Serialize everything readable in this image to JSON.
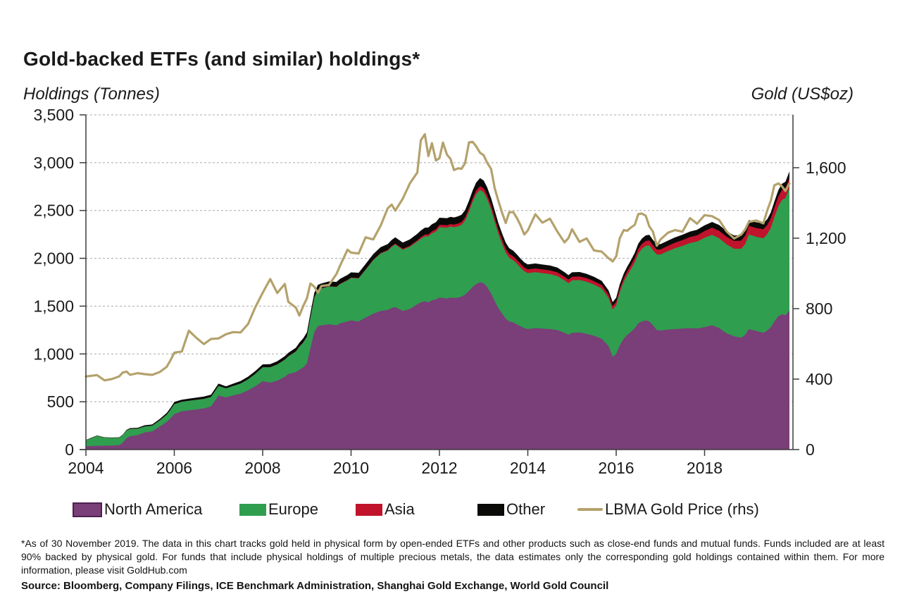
{
  "header": {
    "title": "Gold-backed ETFs (and similar) holdings*"
  },
  "axes": {
    "left_label": "Holdings (Tonnes)",
    "right_label": "Gold (US$oz)",
    "left_ticks": [
      {
        "value": 3500,
        "label": "3,500"
      },
      {
        "value": 3000,
        "label": "3,000"
      },
      {
        "value": 2500,
        "label": "2,500"
      },
      {
        "value": 2000,
        "label": "2,000"
      },
      {
        "value": 1500,
        "label": "1,500"
      },
      {
        "value": 1000,
        "label": "1,000"
      },
      {
        "value": 500,
        "label": "500"
      },
      {
        "value": 0,
        "label": "0"
      }
    ],
    "right_ticks": [
      {
        "value": 1600,
        "label": "1,600"
      },
      {
        "value": 1200,
        "label": "1,200"
      },
      {
        "value": 800,
        "label": "800"
      },
      {
        "value": 400,
        "label": "400"
      },
      {
        "value": 0,
        "label": "0"
      }
    ],
    "x_ticks": [
      {
        "value": 2004,
        "label": "2004"
      },
      {
        "value": 2006,
        "label": "2006"
      },
      {
        "value": 2008,
        "label": "2008"
      },
      {
        "value": 2010,
        "label": "2010"
      },
      {
        "value": 2012,
        "label": "2012"
      },
      {
        "value": 2014,
        "label": "2014"
      },
      {
        "value": 2016,
        "label": "2016"
      },
      {
        "value": 2018,
        "label": "2018"
      }
    ]
  },
  "legend": {
    "items": [
      {
        "label": "North America",
        "color": "#7a3e78",
        "border": "#4e2050",
        "type": "area"
      },
      {
        "label": "Europe",
        "color": "#2f9e4f",
        "type": "area"
      },
      {
        "label": "Asia",
        "color": "#c1132c",
        "type": "area"
      },
      {
        "label": "Other",
        "color": "#0a0a08",
        "type": "area"
      },
      {
        "label": "LBMA Gold Price (rhs)",
        "color": "#b4a26c",
        "type": "line"
      }
    ]
  },
  "footnote": "*As of 30 November 2019. The data in this chart tracks gold held in physical form by open-ended ETFs and other products such as close-end funds and mutual funds. Funds included are at least 90% backed by physical gold. For funds that include physical holdings of multiple precious metals, the data estimates only the corresponding gold holdings contained within them. For more information, please visit GoldHub.com",
  "source": "Source: Bloomberg, Company Filings, ICE Benchmark Administration,  Shanghai Gold Exchange, World Gold Council",
  "chart_data": {
    "type": "area",
    "stacked": true,
    "title": "Gold-backed ETFs (and similar) holdings*",
    "xlabel": "",
    "ylabel_left": "Holdings (Tonnes)",
    "ylabel_right": "Gold (US$oz)",
    "x_range": [
      2004,
      2019.97
    ],
    "left_ylim": [
      0,
      3500
    ],
    "right_ylim": [
      0,
      1900
    ],
    "grid": "dashed-horizontal",
    "legend_position": "bottom",
    "x": [
      2004.0,
      2004.25,
      2004.42,
      2004.58,
      2004.75,
      2004.83,
      2004.92,
      2005.0,
      2005.17,
      2005.33,
      2005.5,
      2005.67,
      2005.83,
      2005.92,
      2006.0,
      2006.17,
      2006.33,
      2006.5,
      2006.67,
      2006.83,
      2007.0,
      2007.17,
      2007.33,
      2007.5,
      2007.67,
      2007.83,
      2008.0,
      2008.17,
      2008.33,
      2008.5,
      2008.58,
      2008.75,
      2008.83,
      2008.92,
      2009.0,
      2009.08,
      2009.17,
      2009.25,
      2009.33,
      2009.5,
      2009.67,
      2009.75,
      2009.92,
      2010.0,
      2010.17,
      2010.33,
      2010.5,
      2010.67,
      2010.83,
      2010.92,
      2011.0,
      2011.17,
      2011.33,
      2011.5,
      2011.58,
      2011.67,
      2011.75,
      2011.83,
      2011.92,
      2012.0,
      2012.08,
      2012.17,
      2012.25,
      2012.33,
      2012.42,
      2012.5,
      2012.58,
      2012.67,
      2012.75,
      2012.83,
      2012.92,
      2013.0,
      2013.08,
      2013.17,
      2013.25,
      2013.33,
      2013.42,
      2013.5,
      2013.58,
      2013.67,
      2013.75,
      2013.83,
      2013.92,
      2014.0,
      2014.17,
      2014.33,
      2014.5,
      2014.67,
      2014.83,
      2014.92,
      2015.0,
      2015.17,
      2015.33,
      2015.5,
      2015.67,
      2015.83,
      2015.92,
      2016.0,
      2016.08,
      2016.17,
      2016.25,
      2016.33,
      2016.42,
      2016.5,
      2016.58,
      2016.67,
      2016.75,
      2016.83,
      2016.92,
      2017.0,
      2017.17,
      2017.33,
      2017.5,
      2017.67,
      2017.83,
      2018.0,
      2018.17,
      2018.33,
      2018.5,
      2018.67,
      2018.83,
      2018.92,
      2019.0,
      2019.17,
      2019.33,
      2019.42,
      2019.5,
      2019.58,
      2019.67,
      2019.75,
      2019.83,
      2019.92
    ],
    "series": [
      {
        "name": "North America",
        "axis": "left",
        "color": "#7a3e78",
        "values": [
          35,
          40,
          40,
          42,
          45,
          70,
          120,
          140,
          150,
          180,
          190,
          240,
          290,
          330,
          370,
          400,
          410,
          420,
          430,
          450,
          565,
          545,
          565,
          585,
          620,
          660,
          715,
          700,
          720,
          760,
          790,
          810,
          835,
          860,
          900,
          1060,
          1230,
          1290,
          1300,
          1310,
          1300,
          1320,
          1340,
          1350,
          1340,
          1380,
          1420,
          1450,
          1460,
          1480,
          1490,
          1450,
          1470,
          1520,
          1540,
          1550,
          1540,
          1560,
          1570,
          1590,
          1585,
          1580,
          1590,
          1585,
          1590,
          1600,
          1620,
          1660,
          1700,
          1730,
          1750,
          1740,
          1700,
          1630,
          1555,
          1480,
          1420,
          1370,
          1340,
          1330,
          1310,
          1290,
          1270,
          1260,
          1270,
          1265,
          1260,
          1250,
          1220,
          1200,
          1220,
          1225,
          1210,
          1190,
          1160,
          1080,
          970,
          1000,
          1090,
          1160,
          1200,
          1230,
          1270,
          1320,
          1340,
          1350,
          1340,
          1300,
          1250,
          1245,
          1255,
          1260,
          1265,
          1270,
          1265,
          1280,
          1300,
          1270,
          1215,
          1185,
          1170,
          1200,
          1260,
          1240,
          1220,
          1245,
          1280,
          1340,
          1395,
          1415,
          1405,
          1455
        ]
      },
      {
        "name": "Europe",
        "axis": "left",
        "color": "#2f9e4f",
        "values": [
          62,
          103,
          85,
          80,
          78,
          80,
          80,
          75,
          68,
          62,
          60,
          65,
          75,
          90,
          105,
          100,
          100,
          100,
          100,
          100,
          100,
          95,
          100,
          105,
          115,
          130,
          145,
          160,
          170,
          180,
          185,
          215,
          240,
          260,
          280,
          320,
          360,
          380,
          385,
          395,
          400,
          410,
          430,
          445,
          450,
          500,
          560,
          600,
          620,
          640,
          655,
          640,
          650,
          655,
          665,
          680,
          690,
          700,
          710,
          735,
          738,
          740,
          742,
          740,
          745,
          750,
          775,
          830,
          890,
          940,
          965,
          950,
          920,
          880,
          830,
          780,
          730,
          690,
          665,
          650,
          635,
          615,
          595,
          585,
          585,
          580,
          575,
          565,
          550,
          540,
          550,
          548,
          545,
          535,
          525,
          505,
          495,
          510,
          555,
          595,
          625,
          655,
          690,
          730,
          760,
          780,
          795,
          785,
          790,
          795,
          820,
          845,
          865,
          890,
          910,
          935,
          945,
          940,
          930,
          915,
          930,
          950,
          990,
          985,
          990,
          1010,
          1040,
          1090,
          1150,
          1195,
          1225,
          1280
        ]
      },
      {
        "name": "Asia",
        "axis": "left",
        "color": "#c1132c",
        "values": [
          0,
          0,
          0,
          0,
          0,
          0,
          0,
          0,
          0,
          0,
          0,
          0,
          0,
          0,
          0,
          0,
          0,
          0,
          0,
          0,
          0,
          0,
          0,
          0,
          0,
          0,
          1,
          1,
          1,
          1,
          1,
          2,
          2,
          2,
          2,
          2,
          2,
          2,
          2,
          3,
          3,
          3,
          4,
          4,
          4,
          5,
          5,
          6,
          7,
          8,
          9,
          10,
          12,
          14,
          16,
          18,
          20,
          22,
          23,
          25,
          25,
          26,
          26,
          27,
          28,
          29,
          31,
          33,
          36,
          38,
          40,
          42,
          42,
          43,
          43,
          43,
          42,
          42,
          41,
          41,
          40,
          40,
          39,
          39,
          39,
          39,
          39,
          38,
          37,
          37,
          37,
          37,
          37,
          36,
          36,
          35,
          35,
          36,
          37,
          38,
          40,
          42,
          45,
          48,
          50,
          52,
          52,
          52,
          52,
          52,
          55,
          58,
          60,
          62,
          65,
          70,
          75,
          78,
          80,
          82,
          85,
          88,
          90,
          92,
          95,
          95,
          98,
          100,
          102,
          103,
          104,
          105
        ]
      },
      {
        "name": "Other",
        "axis": "left",
        "color": "#0a0a08",
        "values": [
          4,
          4,
          4,
          4,
          5,
          5,
          6,
          10,
          10,
          12,
          12,
          15,
          18,
          20,
          22,
          22,
          23,
          23,
          24,
          24,
          25,
          22,
          24,
          26,
          28,
          30,
          30,
          32,
          33,
          35,
          36,
          38,
          40,
          42,
          44,
          46,
          48,
          50,
          50,
          50,
          50,
          52,
          53,
          54,
          54,
          56,
          58,
          60,
          62,
          64,
          66,
          64,
          66,
          68,
          70,
          72,
          72,
          74,
          74,
          74,
          74,
          74,
          75,
          75,
          76,
          76,
          78,
          80,
          82,
          84,
          84,
          82,
          80,
          76,
          74,
          70,
          66,
          62,
          60,
          59,
          57,
          55,
          53,
          52,
          52,
          51,
          51,
          50,
          48,
          47,
          47,
          47,
          46,
          45,
          44,
          42,
          41,
          42,
          44,
          46,
          48,
          50,
          52,
          55,
          56,
          58,
          58,
          56,
          56,
          56,
          55,
          56,
          57,
          58,
          58,
          60,
          60,
          60,
          58,
          56,
          58,
          58,
          60,
          60,
          60,
          60,
          62,
          64,
          66,
          66,
          66,
          68
        ]
      },
      {
        "name": "LBMA Gold Price (rhs)",
        "type": "line",
        "axis": "right",
        "color": "#b4a26c",
        "values": [
          415,
          423,
          393,
          400,
          415,
          437,
          443,
          424,
          434,
          428,
          424,
          440,
          470,
          510,
          550,
          557,
          675,
          634,
          599,
          628,
          631,
          655,
          667,
          665,
          713,
          806,
          890,
          968,
          889,
          940,
          839,
          806,
          761,
          816,
          858,
          943,
          924,
          890,
          929,
          934,
          997,
          1043,
          1135,
          1118,
          1113,
          1205,
          1193,
          1271,
          1370,
          1391,
          1356,
          1424,
          1511,
          1573,
          1756,
          1790,
          1666,
          1739,
          1641,
          1654,
          1743,
          1674,
          1650,
          1587,
          1597,
          1594,
          1626,
          1744,
          1747,
          1722,
          1685,
          1671,
          1628,
          1593,
          1485,
          1414,
          1343,
          1286,
          1347,
          1348,
          1316,
          1276,
          1221,
          1244,
          1336,
          1288,
          1311,
          1237,
          1176,
          1201,
          1251,
          1179,
          1199,
          1130,
          1124,
          1086,
          1068,
          1097,
          1199,
          1246,
          1242,
          1260,
          1276,
          1337,
          1340,
          1327,
          1266,
          1238,
          1157,
          1192,
          1231,
          1246,
          1237,
          1314,
          1282,
          1331,
          1325,
          1303,
          1238,
          1198,
          1221,
          1250,
          1292,
          1301,
          1284,
          1359,
          1413,
          1500,
          1511,
          1495,
          1468,
          1510
        ]
      }
    ]
  }
}
